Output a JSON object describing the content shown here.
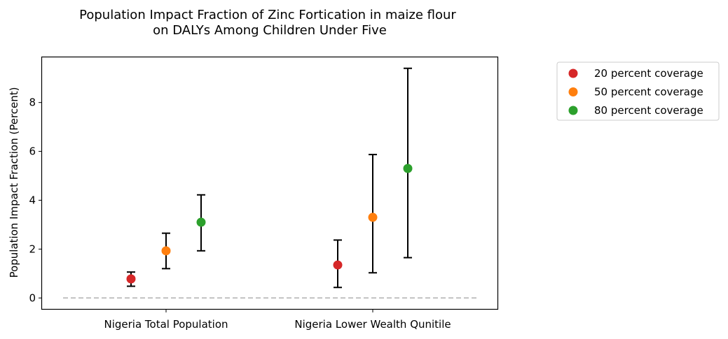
{
  "chart_data": {
    "type": "scatter",
    "title_lines": [
      "Population Impact Fraction of Zinc Fortication in maize flour",
      "on DALYs Among Children Under Five"
    ],
    "xlabel": "",
    "ylabel": "Population Impact Fraction (Percent)",
    "categories": [
      "Nigeria Total Population",
      "Nigeria Lower Wealth Qunitile"
    ],
    "ylim": [
      -0.45,
      9.85
    ],
    "yticks": [
      0,
      2,
      4,
      6,
      8
    ],
    "grid": false,
    "legend_position": "outside-top-right",
    "reference_line": {
      "y": 0,
      "style": "dashed",
      "color": "#c0c0c0"
    },
    "series": [
      {
        "name": "20 percent coverage",
        "color": "#d62728",
        "values": [
          0.78,
          1.35
        ],
        "lower": [
          0.48,
          0.43
        ],
        "upper": [
          1.06,
          2.37
        ]
      },
      {
        "name": "50 percent coverage",
        "color": "#ff7f0e",
        "values": [
          1.93,
          3.3
        ],
        "lower": [
          1.2,
          1.03
        ],
        "upper": [
          2.65,
          5.87
        ]
      },
      {
        "name": "80 percent coverage",
        "color": "#2ca02c",
        "values": [
          3.1,
          5.3
        ],
        "lower": [
          1.93,
          1.65
        ],
        "upper": [
          4.22,
          9.4
        ]
      }
    ]
  }
}
